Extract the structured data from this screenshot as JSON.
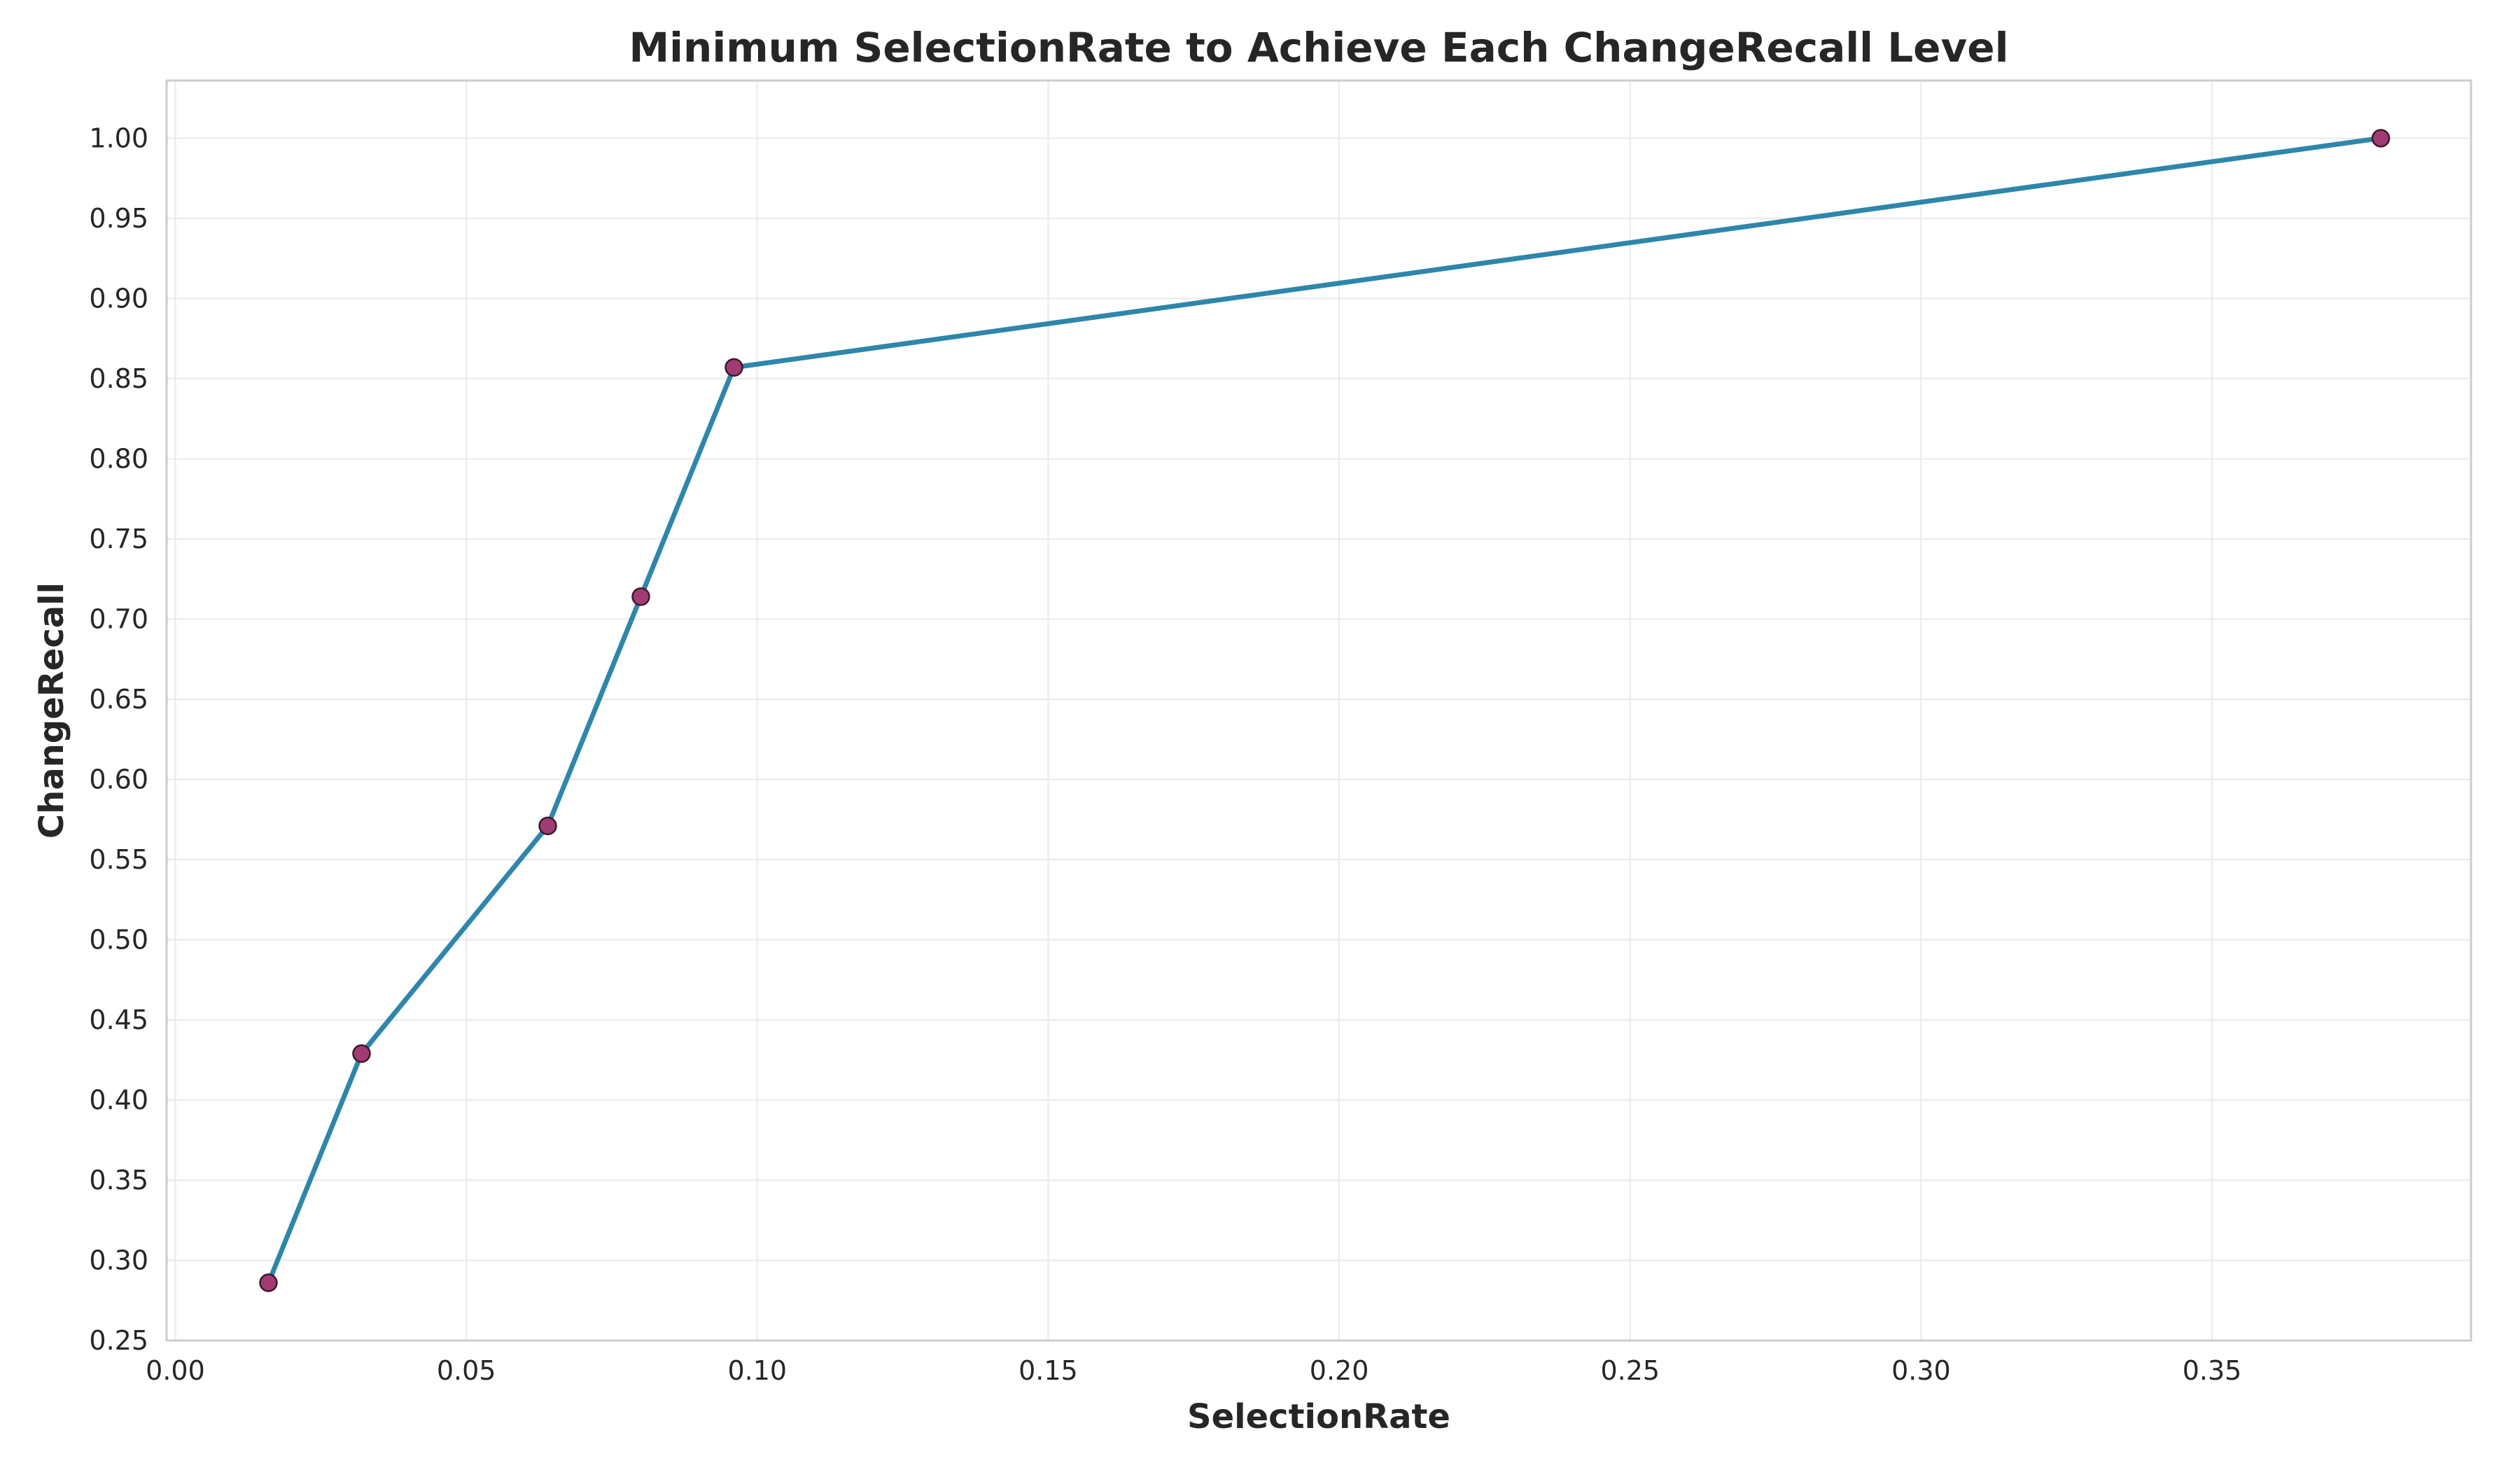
{
  "chart_data": {
    "type": "line",
    "title": "Minimum SelectionRate to Achieve Each ChangeRecall Level",
    "xlabel": "SelectionRate",
    "ylabel": "ChangeRecall",
    "xlim": [
      -0.0015,
      0.3945
    ],
    "ylim": [
      0.25,
      1.036
    ],
    "x_ticks": [
      "0.00",
      "0.05",
      "0.10",
      "0.15",
      "0.20",
      "0.25",
      "0.30",
      "0.35"
    ],
    "y_ticks": [
      "0.25",
      "0.30",
      "0.35",
      "0.40",
      "0.45",
      "0.50",
      "0.55",
      "0.60",
      "0.65",
      "0.70",
      "0.75",
      "0.80",
      "0.85",
      "0.90",
      "0.95",
      "1.00"
    ],
    "grid": true,
    "series": [
      {
        "x": [
          0.016,
          0.032,
          0.064,
          0.08,
          0.096,
          0.379
        ],
        "y": [
          0.286,
          0.429,
          0.571,
          0.714,
          0.857,
          1.0
        ]
      }
    ],
    "colors": {
      "line": "#2e86ab",
      "marker": "#a23b72"
    }
  }
}
